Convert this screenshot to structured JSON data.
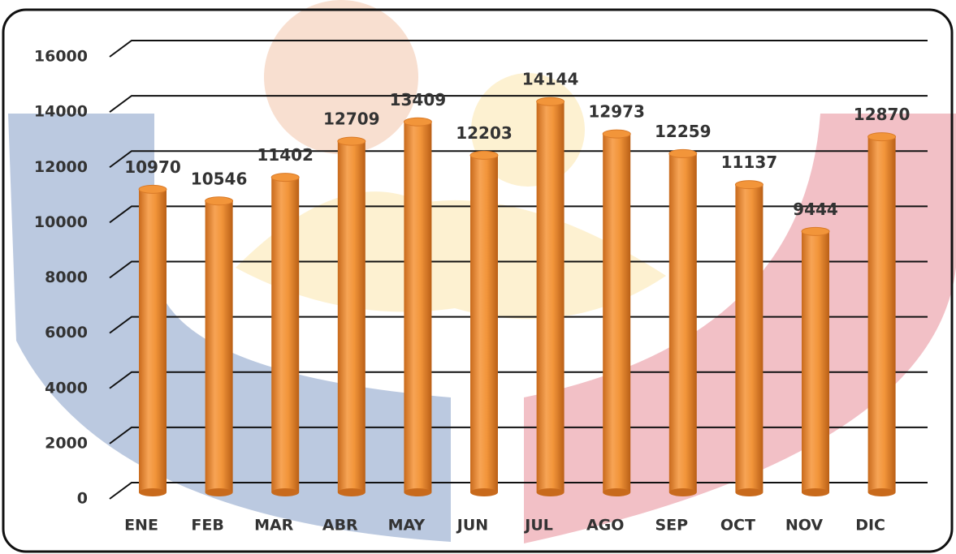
{
  "chart_data": {
    "type": "bar",
    "categories": [
      "ENE",
      "FEB",
      "MAR",
      "ABR",
      "MAY",
      "JUN",
      "JUL",
      "AGO",
      "SEP",
      "OCT",
      "NOV",
      "DIC"
    ],
    "values": [
      10970,
      10546,
      11402,
      12709,
      13409,
      12203,
      14144,
      12973,
      12259,
      11137,
      9444,
      12870
    ],
    "color": "#f2953a",
    "ylim": [
      0,
      16000
    ],
    "yticks": [
      0,
      2000,
      4000,
      6000,
      8000,
      10000,
      12000,
      14000,
      16000
    ],
    "grid": true
  }
}
